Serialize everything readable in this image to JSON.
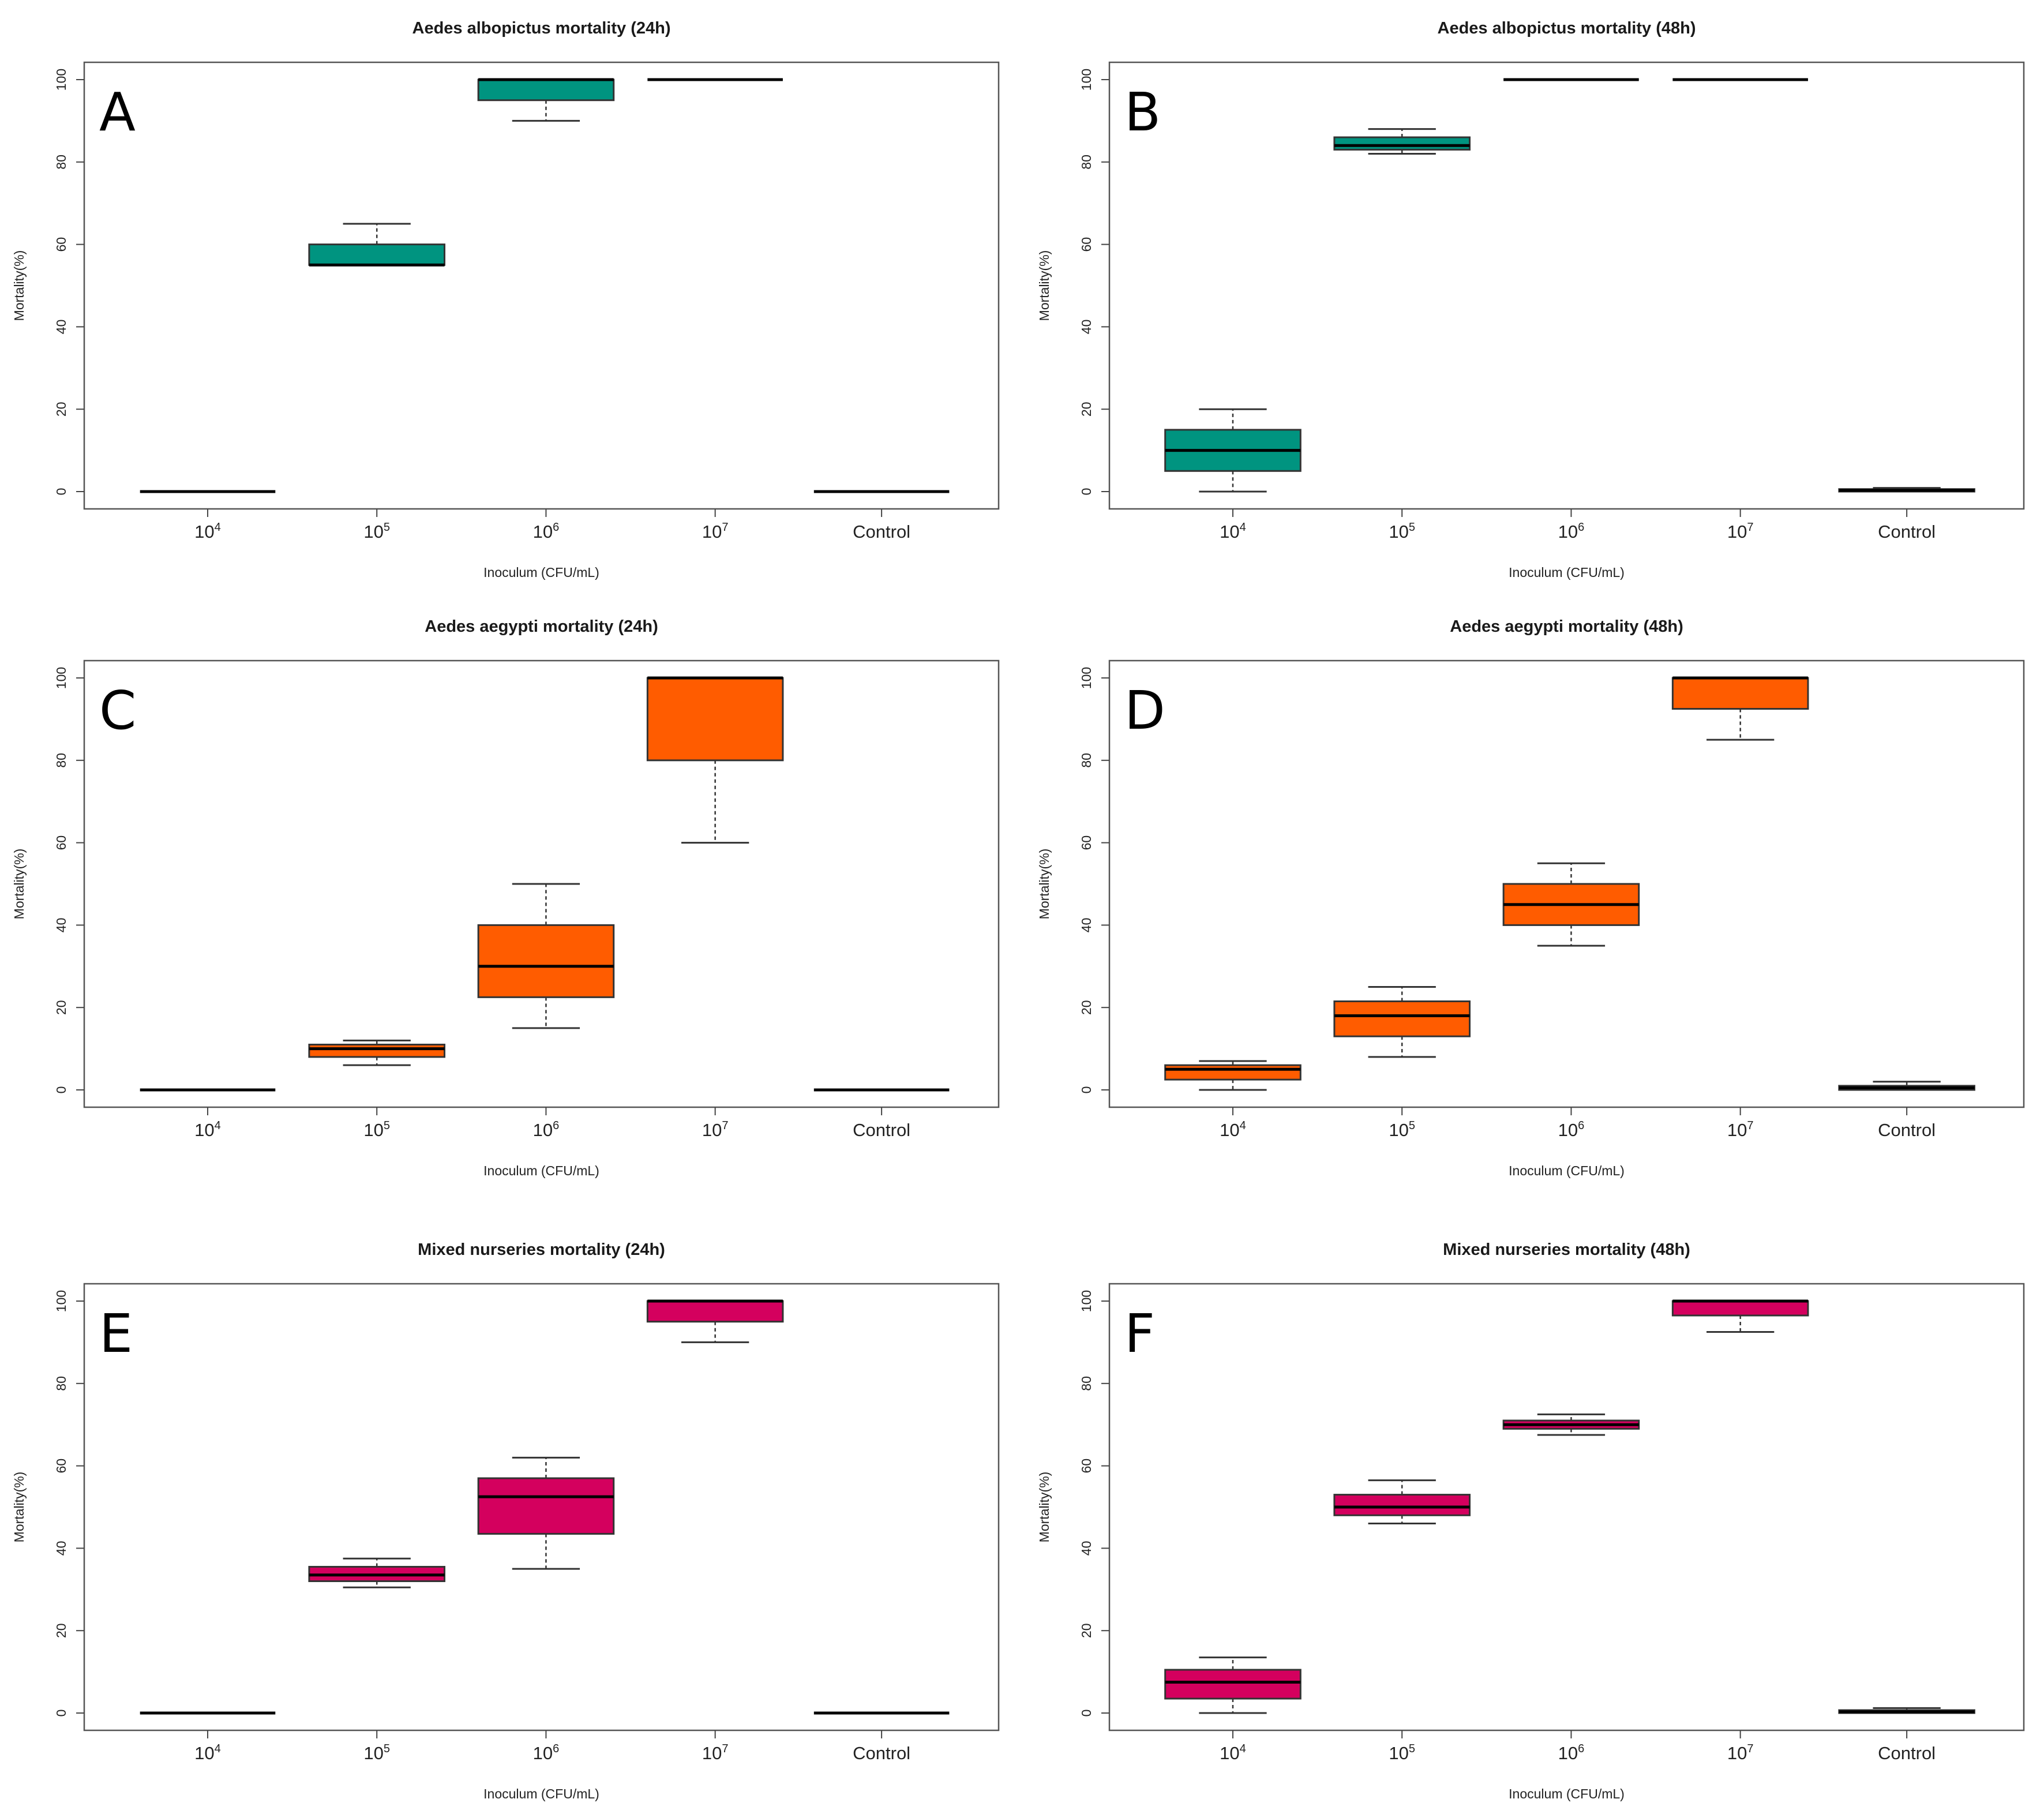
{
  "chart_data": [
    {
      "type": "box",
      "panel": "A",
      "title": "Aedes albopictus mortality (24h)",
      "xlabel": "Inoculum (CFU/mL)",
      "ylabel": "Mortality(%)",
      "ylim": [
        0,
        100
      ],
      "yticks": [
        "0",
        "20",
        "40",
        "60",
        "80",
        "100"
      ],
      "color": "#009480",
      "categories": [
        {
          "base": "10",
          "exp": "4",
          "text": ""
        },
        {
          "base": "10",
          "exp": "5",
          "text": ""
        },
        {
          "base": "10",
          "exp": "6",
          "text": ""
        },
        {
          "base": "10",
          "exp": "7",
          "text": ""
        },
        {
          "base": "",
          "exp": "",
          "text": "Control"
        }
      ],
      "boxes": [
        {
          "min": 0,
          "q1": 0,
          "median": 0,
          "q3": 0,
          "max": 0
        },
        {
          "min": 55,
          "q1": 55,
          "median": 55,
          "q3": 60,
          "max": 65
        },
        {
          "min": 90,
          "q1": 95,
          "median": 100,
          "q3": 100,
          "max": 100
        },
        {
          "min": 100,
          "q1": 100,
          "median": 100,
          "q3": 100,
          "max": 100
        },
        {
          "min": 0,
          "q1": 0,
          "median": 0,
          "q3": 0,
          "max": 0
        }
      ]
    },
    {
      "type": "box",
      "panel": "B",
      "title": "Aedes albopictus mortality (48h)",
      "xlabel": "Inoculum (CFU/mL)",
      "ylabel": "Mortality(%)",
      "ylim": [
        0,
        100
      ],
      "yticks": [
        "0",
        "20",
        "40",
        "60",
        "80",
        "100"
      ],
      "color": "#009480",
      "categories": [
        {
          "base": "10",
          "exp": "4",
          "text": ""
        },
        {
          "base": "10",
          "exp": "5",
          "text": ""
        },
        {
          "base": "10",
          "exp": "6",
          "text": ""
        },
        {
          "base": "10",
          "exp": "7",
          "text": ""
        },
        {
          "base": "",
          "exp": "",
          "text": "Control"
        }
      ],
      "boxes": [
        {
          "min": 0,
          "q1": 5,
          "median": 10,
          "q3": 15,
          "max": 20
        },
        {
          "min": 82,
          "q1": 83,
          "median": 84,
          "q3": 86,
          "max": 88
        },
        {
          "min": 100,
          "q1": 100,
          "median": 100,
          "q3": 100,
          "max": 100
        },
        {
          "min": 100,
          "q1": 100,
          "median": 100,
          "q3": 100,
          "max": 100
        },
        {
          "min": 0,
          "q1": 0,
          "median": 0.3,
          "q3": 0.6,
          "max": 0.9
        }
      ]
    },
    {
      "type": "box",
      "panel": "C",
      "title": "Aedes aegypti mortality (24h)",
      "xlabel": "Inoculum (CFU/mL)",
      "ylabel": "Mortality(%)",
      "ylim": [
        0,
        100
      ],
      "yticks": [
        "0",
        "20",
        "40",
        "60",
        "80",
        "100"
      ],
      "color": "#FF5C00",
      "categories": [
        {
          "base": "10",
          "exp": "4",
          "text": ""
        },
        {
          "base": "10",
          "exp": "5",
          "text": ""
        },
        {
          "base": "10",
          "exp": "6",
          "text": ""
        },
        {
          "base": "10",
          "exp": "7",
          "text": ""
        },
        {
          "base": "",
          "exp": "",
          "text": "Control"
        }
      ],
      "boxes": [
        {
          "min": 0,
          "q1": 0,
          "median": 0,
          "q3": 0,
          "max": 0
        },
        {
          "min": 6,
          "q1": 8,
          "median": 10,
          "q3": 11,
          "max": 12
        },
        {
          "min": 15,
          "q1": 22.5,
          "median": 30,
          "q3": 40,
          "max": 50
        },
        {
          "min": 60,
          "q1": 80,
          "median": 100,
          "q3": 100,
          "max": 100
        },
        {
          "min": 0,
          "q1": 0,
          "median": 0,
          "q3": 0,
          "max": 0
        }
      ]
    },
    {
      "type": "box",
      "panel": "D",
      "title": "Aedes aegypti mortality (48h)",
      "xlabel": "Inoculum (CFU/mL)",
      "ylabel": "Mortality(%)",
      "ylim": [
        0,
        100
      ],
      "yticks": [
        "0",
        "20",
        "40",
        "60",
        "80",
        "100"
      ],
      "color": "#FF5C00",
      "categories": [
        {
          "base": "10",
          "exp": "4",
          "text": ""
        },
        {
          "base": "10",
          "exp": "5",
          "text": ""
        },
        {
          "base": "10",
          "exp": "6",
          "text": ""
        },
        {
          "base": "10",
          "exp": "7",
          "text": ""
        },
        {
          "base": "",
          "exp": "",
          "text": "Control"
        }
      ],
      "boxes": [
        {
          "min": 0,
          "q1": 2.5,
          "median": 5,
          "q3": 6,
          "max": 7
        },
        {
          "min": 8,
          "q1": 13,
          "median": 18,
          "q3": 21.5,
          "max": 25
        },
        {
          "min": 35,
          "q1": 40,
          "median": 45,
          "q3": 50,
          "max": 55
        },
        {
          "min": 85,
          "q1": 92.5,
          "median": 100,
          "q3": 100,
          "max": 100
        },
        {
          "min": 0,
          "q1": 0,
          "median": 0.5,
          "q3": 1,
          "max": 2
        }
      ]
    },
    {
      "type": "box",
      "panel": "E",
      "title": "Mixed nurseries mortality (24h)",
      "xlabel": "Inoculum (CFU/mL)",
      "ylabel": "Mortality(%)",
      "ylim": [
        0,
        100
      ],
      "yticks": [
        "0",
        "20",
        "40",
        "60",
        "80",
        "100"
      ],
      "color": "#D4005E",
      "categories": [
        {
          "base": "10",
          "exp": "4",
          "text": ""
        },
        {
          "base": "10",
          "exp": "5",
          "text": ""
        },
        {
          "base": "10",
          "exp": "6",
          "text": ""
        },
        {
          "base": "10",
          "exp": "7",
          "text": ""
        },
        {
          "base": "",
          "exp": "",
          "text": "Control"
        }
      ],
      "boxes": [
        {
          "min": 0,
          "q1": 0,
          "median": 0,
          "q3": 0,
          "max": 0
        },
        {
          "min": 30.5,
          "q1": 32,
          "median": 33.5,
          "q3": 35.5,
          "max": 37.5
        },
        {
          "min": 35,
          "q1": 43.5,
          "median": 52.5,
          "q3": 57,
          "max": 62
        },
        {
          "min": 90,
          "q1": 95,
          "median": 100,
          "q3": 100,
          "max": 100
        },
        {
          "min": 0,
          "q1": 0,
          "median": 0,
          "q3": 0,
          "max": 0
        }
      ]
    },
    {
      "type": "box",
      "panel": "F",
      "title": "Mixed nurseries mortality (48h)",
      "xlabel": "Inoculum (CFU/mL)",
      "ylabel": "Mortality(%)",
      "ylim": [
        0,
        100
      ],
      "yticks": [
        "0",
        "20",
        "40",
        "60",
        "80",
        "100"
      ],
      "color": "#D4005E",
      "categories": [
        {
          "base": "10",
          "exp": "4",
          "text": ""
        },
        {
          "base": "10",
          "exp": "5",
          "text": ""
        },
        {
          "base": "10",
          "exp": "6",
          "text": ""
        },
        {
          "base": "10",
          "exp": "7",
          "text": ""
        },
        {
          "base": "",
          "exp": "",
          "text": "Control"
        }
      ],
      "boxes": [
        {
          "min": 0,
          "q1": 3.5,
          "median": 7.5,
          "q3": 10.5,
          "max": 13.5
        },
        {
          "min": 46,
          "q1": 48,
          "median": 50,
          "q3": 53,
          "max": 56.5
        },
        {
          "min": 67.5,
          "q1": 69,
          "median": 70,
          "q3": 71,
          "max": 72.5
        },
        {
          "min": 92.5,
          "q1": 96.5,
          "median": 100,
          "q3": 100,
          "max": 100
        },
        {
          "min": 0,
          "q1": 0,
          "median": 0.3,
          "q3": 0.7,
          "max": 1.2
        }
      ]
    }
  ]
}
